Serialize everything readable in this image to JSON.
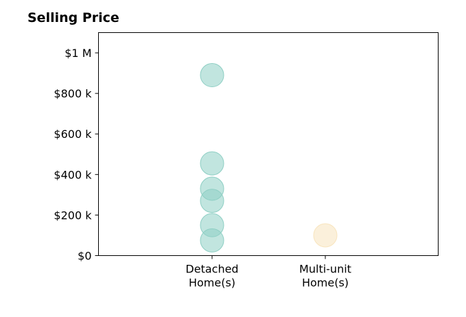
{
  "chart_data": {
    "type": "scatter",
    "title": "Selling Price",
    "xlabel": "",
    "ylabel": "",
    "categories": [
      "Detached\nHome(s)",
      "Multi-unit\nHome(s)"
    ],
    "yticks": [
      {
        "value": 0,
        "label": "$0"
      },
      {
        "value": 200000,
        "label": "$200 k"
      },
      {
        "value": 400000,
        "label": "$400 k"
      },
      {
        "value": 600000,
        "label": "$600 k"
      },
      {
        "value": 800000,
        "label": "$800 k"
      },
      {
        "value": 1000000,
        "label": "$1 M"
      }
    ],
    "ylim": [
      0,
      1100000
    ],
    "grid": false,
    "series": [
      {
        "category_index": 0,
        "color": "#8ecfc4",
        "values": [
          890000,
          455000,
          330000,
          270000,
          150000,
          75000
        ]
      },
      {
        "category_index": 1,
        "color": "#f8e4bd",
        "values": [
          100000
        ]
      }
    ]
  }
}
